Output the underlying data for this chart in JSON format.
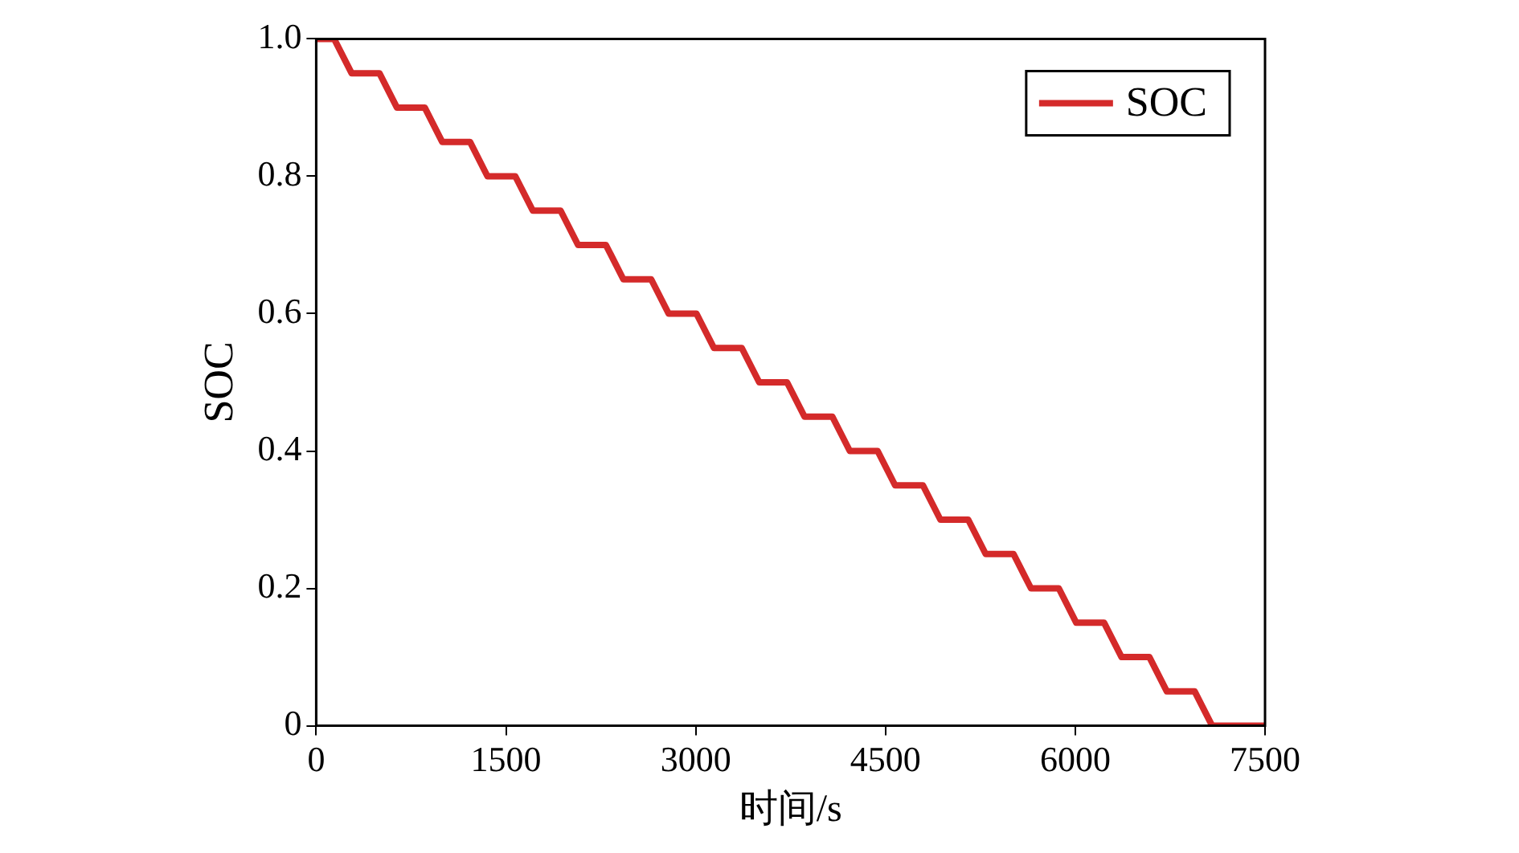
{
  "chart_data": {
    "type": "line",
    "xlabel": "时间/s",
    "ylabel": "SOC",
    "xlim": [
      0,
      7500
    ],
    "xticks": [
      0,
      1500,
      3000,
      4500,
      6000,
      7500
    ],
    "ylim": [
      0,
      1
    ],
    "yticks": [
      0,
      0.2,
      0.4,
      0.6,
      0.8,
      {
        "value": 1,
        "label": "1.0"
      }
    ],
    "grid": false,
    "legend": "top right",
    "marker": "none",
    "line_style": "solid",
    "series": [
      {
        "name": "SOC",
        "color": "#d42a2a",
        "x": [
          0,
          142,
          280,
          500,
          638,
          858,
          996,
          1216,
          1354,
          1574,
          1712,
          1932,
          2070,
          2290,
          2428,
          2648,
          2786,
          3006,
          3144,
          3364,
          3502,
          3722,
          3860,
          4080,
          4218,
          4438,
          4576,
          4796,
          4934,
          5154,
          5292,
          5512,
          5650,
          5870,
          6008,
          6228,
          6366,
          6586,
          6724,
          6944,
          7082,
          7500
        ],
        "values": [
          1,
          1,
          0.95,
          0.95,
          0.9,
          0.9,
          0.85,
          0.85,
          0.8,
          0.8,
          0.75,
          0.75,
          0.7,
          0.7,
          0.65,
          0.65,
          0.6,
          0.6,
          0.55,
          0.55,
          0.5,
          0.5,
          0.45,
          0.45,
          0.4,
          0.4,
          0.35,
          0.35,
          0.3,
          0.3,
          0.25,
          0.25,
          0.2,
          0.2,
          0.15,
          0.15,
          0.1,
          0.1,
          0.05,
          0.05,
          0,
          0
        ]
      }
    ]
  }
}
